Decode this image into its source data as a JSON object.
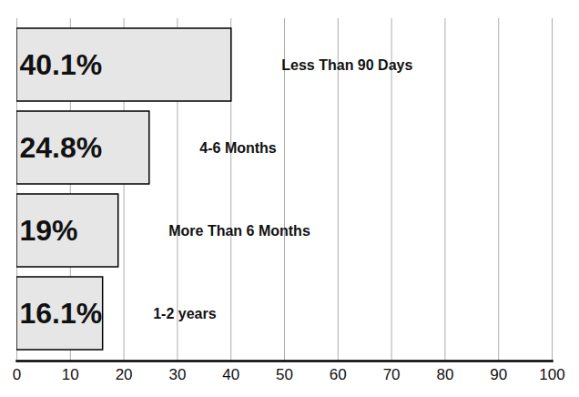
{
  "chart_data": {
    "type": "bar",
    "orientation": "horizontal",
    "categories": [
      "Less Than 90 Days",
      "4-6 Months",
      "More Than 6 Months",
      "1-2 years"
    ],
    "values": [
      40.1,
      24.8,
      19,
      16.1
    ],
    "value_labels": [
      "40.1%",
      "24.8%",
      "19%",
      "16.1%"
    ],
    "color": "#e6e6e6",
    "xlim": [
      0,
      100
    ],
    "xticks": [
      0,
      10,
      20,
      30,
      40,
      50,
      60,
      70,
      80,
      90,
      100
    ],
    "grid": true,
    "data_labels": true,
    "tick_labels": "x"
  }
}
